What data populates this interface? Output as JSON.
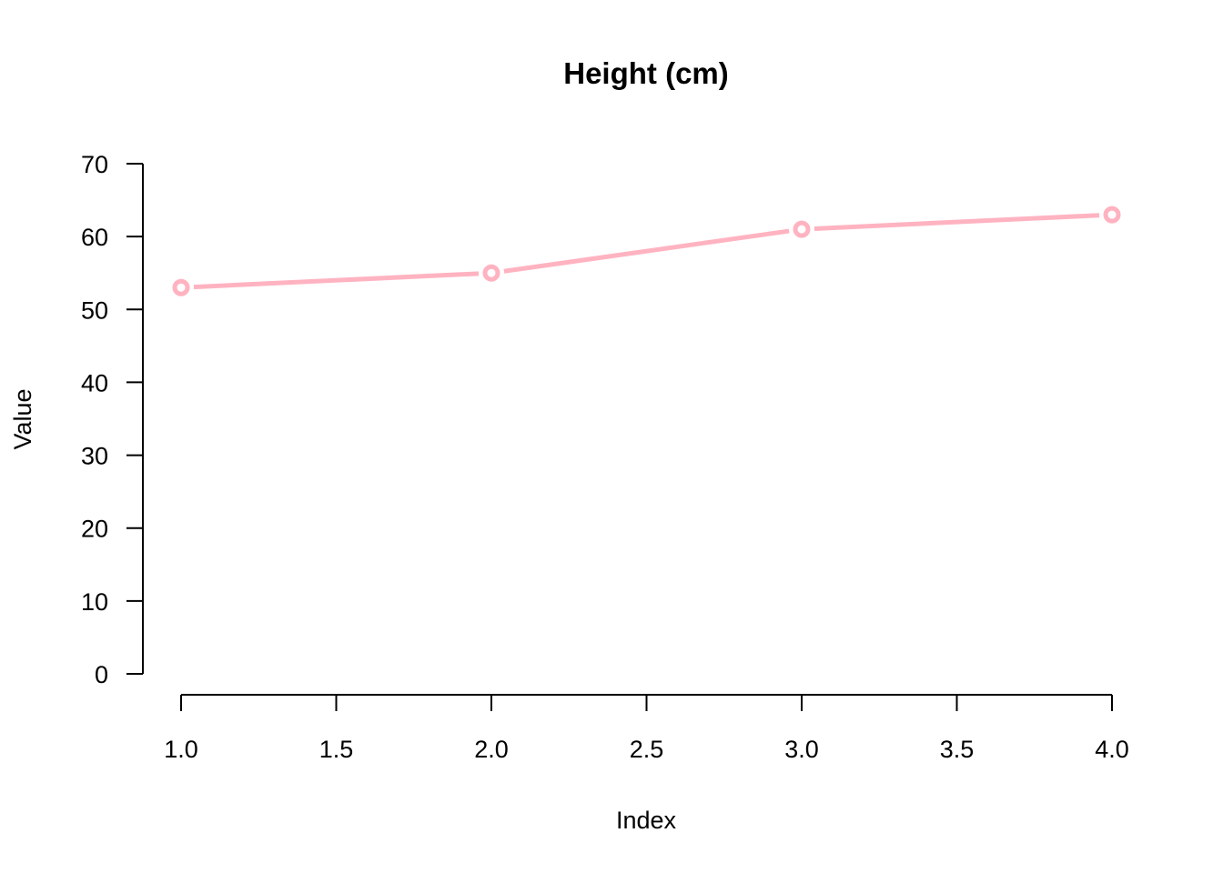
{
  "chart_data": {
    "type": "line",
    "title": "Height (cm)",
    "xlabel": "Index",
    "ylabel": "Value",
    "x": [
      1,
      2,
      3,
      4
    ],
    "series": [
      {
        "values": [
          53,
          55,
          61,
          63
        ]
      }
    ],
    "xlim": [
      1.0,
      4.0
    ],
    "ylim": [
      0,
      70
    ],
    "xticks": [
      "1.0",
      "1.5",
      "2.0",
      "2.5",
      "3.0",
      "3.5",
      "4.0"
    ],
    "yticks": [
      "0",
      "10",
      "20",
      "30",
      "40",
      "50",
      "60",
      "70"
    ],
    "grid": false,
    "line_color": "#ffb3c1",
    "marker": "open-circle"
  }
}
